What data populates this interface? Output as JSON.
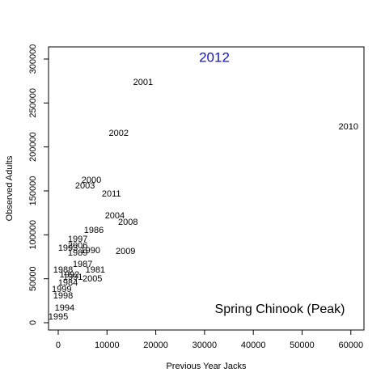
{
  "chart_data": {
    "type": "scatter",
    "annotation": "2012",
    "annotation_color": "#1515c8",
    "legend_text": "Spring Chinook (Peak)",
    "x_label": "Previous Year Jacks",
    "y_label": "Observed Adults",
    "xlim": [
      -1990,
      62690
    ],
    "ylim": [
      -8300,
      313800
    ],
    "xticks": [
      0,
      10000,
      20000,
      30000,
      40000,
      50000,
      60000
    ],
    "yticks": [
      0,
      50000,
      100000,
      150000,
      200000,
      250000,
      300000
    ],
    "labels": [
      "2001",
      "2010",
      "2002",
      "2000",
      "2003",
      "2011",
      "2004",
      "2008",
      "1986",
      "1997",
      "2006",
      "1993",
      "1990",
      "1989",
      "2009",
      "1987",
      "1981",
      "1988",
      "1992",
      "1991",
      "2005",
      "1984",
      "1999",
      "1998",
      "1994",
      "1995"
    ],
    "x": [
      17400,
      59500,
      12400,
      6800,
      5500,
      10900,
      11600,
      14300,
      7300,
      4000,
      4000,
      2000,
      6600,
      4000,
      13800,
      5000,
      7600,
      1000,
      2300,
      3000,
      7000,
      2000,
      700,
      1000,
      1300,
      0
    ],
    "values": [
      273300,
      222700,
      215300,
      162000,
      155500,
      146300,
      121500,
      114100,
      104900,
      94800,
      87400,
      84700,
      81900,
      79100,
      81000,
      66300,
      59800,
      59800,
      54300,
      51500,
      49700,
      45100,
      37700,
      30400,
      16600,
      6400
    ]
  }
}
